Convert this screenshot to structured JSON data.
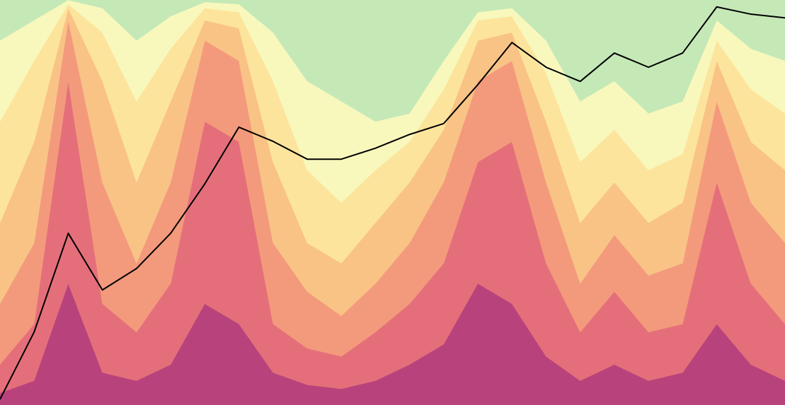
{
  "chart_data": {
    "type": "area",
    "stacked": true,
    "x": [
      0,
      1,
      2,
      3,
      4,
      5,
      6,
      7,
      8,
      9,
      10,
      11,
      12,
      13,
      14,
      15,
      16,
      17,
      18,
      19,
      20,
      21,
      22,
      23
    ],
    "xlim": [
      0,
      23
    ],
    "ylim": [
      0,
      100
    ],
    "series": [
      {
        "color": "#b8437c",
        "values": [
          3,
          6,
          30,
          8,
          6,
          10,
          25,
          20,
          8,
          5,
          4,
          6,
          10,
          15,
          30,
          25,
          12,
          6,
          10,
          6,
          8,
          20,
          10,
          6
        ]
      },
      {
        "color": "#e46f7a",
        "values": [
          7,
          14,
          50,
          17,
          12,
          20,
          45,
          45,
          12,
          9,
          8,
          12,
          15,
          20,
          30,
          40,
          23,
          12,
          18,
          12,
          12,
          35,
          20,
          14
        ]
      },
      {
        "color": "#f39a7c",
        "values": [
          15,
          20,
          15,
          30,
          17,
          25,
          20,
          20,
          20,
          14,
          10,
          12,
          15,
          20,
          20,
          20,
          20,
          12,
          14,
          14,
          15,
          20,
          20,
          20
        ]
      },
      {
        "color": "#f9c386",
        "values": [
          20,
          25,
          3,
          25,
          20,
          20,
          5,
          8,
          20,
          12,
          13,
          15,
          15,
          13,
          10,
          7,
          15,
          15,
          13,
          13,
          15,
          10,
          15,
          18
        ]
      },
      {
        "color": "#fde49c",
        "values": [
          25,
          20,
          1,
          12,
          20,
          13,
          3,
          4,
          20,
          18,
          15,
          13,
          10,
          10,
          5,
          4,
          12,
          15,
          13,
          13,
          12,
          5,
          13,
          14
        ]
      },
      {
        "color": "#f8f8bd",
        "values": [
          20,
          10,
          1,
          6,
          15,
          8,
          1.5,
          2,
          12,
          22,
          25,
          12,
          7,
          7,
          2,
          2,
          8,
          15,
          12,
          14,
          13,
          5,
          10,
          13
        ]
      },
      {
        "color": "#c5e8b7",
        "values": [
          10,
          5,
          0,
          2,
          10,
          4,
          0.5,
          1,
          8,
          20,
          25,
          30,
          28,
          15,
          3,
          2,
          10,
          25,
          20,
          28,
          25,
          5,
          12,
          15
        ]
      },
      {
        "type": "line",
        "color": "#000000",
        "values": [
          1.4,
          18,
          42.4,
          28.4,
          33.7,
          42.4,
          54.6,
          68.6,
          65.1,
          60.7,
          60.7,
          63.4,
          66.8,
          69.5,
          79.1,
          89.5,
          83.4,
          79.9,
          86.9,
          83.4,
          86.9,
          98.3,
          96.5,
          95.6
        ]
      }
    ]
  }
}
